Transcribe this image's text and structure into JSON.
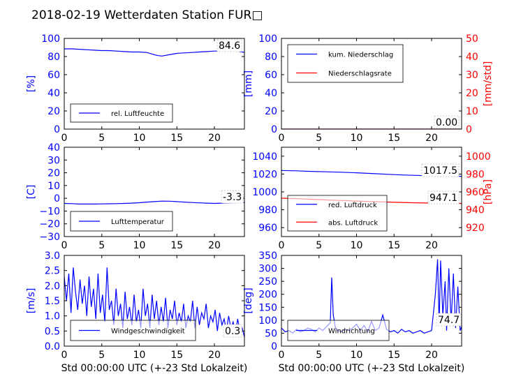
{
  "title": "2018-02-19 Wetterdaten Station FUR□",
  "colors": {
    "primary": "#0000ff",
    "secondary": "#ff0000",
    "tick_left": "#0000ff",
    "tick_right": "#ff0000"
  },
  "chart_data": [
    {
      "id": "humidity",
      "type": "line",
      "xlim": [
        0,
        24
      ],
      "ylim": [
        0,
        100
      ],
      "xticks": [
        "0",
        "5",
        "10",
        "15",
        "20"
      ],
      "yticks": [
        "0",
        "20",
        "40",
        "60",
        "80",
        "100"
      ],
      "ylabel": "[%]",
      "last_value": "84.6",
      "series": [
        {
          "name": "rel. Luftfeuchte",
          "color": "#0000ff",
          "x": [
            0,
            1,
            2,
            3,
            4,
            5,
            6,
            7,
            8,
            9,
            10,
            11,
            12,
            12.5,
            13,
            14,
            15,
            16,
            17,
            18,
            19,
            20,
            21,
            22,
            23,
            24
          ],
          "y": [
            88.5,
            88.5,
            88,
            87.5,
            87,
            86.5,
            86.5,
            86,
            85.5,
            85,
            85,
            84.5,
            82,
            81,
            80.5,
            82,
            83.5,
            84,
            84.5,
            85,
            85.5,
            86,
            86,
            86.5,
            86,
            84.6
          ]
        }
      ]
    },
    {
      "id": "precipitation",
      "type": "line",
      "xlim": [
        0,
        24
      ],
      "ylim": [
        0,
        100
      ],
      "ylim_right": [
        0,
        50
      ],
      "xticks": [
        "0",
        "5",
        "10",
        "15",
        "20"
      ],
      "yticks": [
        "0",
        "20",
        "40",
        "60",
        "80",
        "100"
      ],
      "yticks_right": [
        "0",
        "10",
        "20",
        "30",
        "40",
        "50"
      ],
      "ylabel": "[mm]",
      "ylabel_right": "[mm/std]",
      "last_value": "0.00",
      "series": [
        {
          "name": "kum. Niederschlag",
          "color": "#0000ff",
          "axis": "left",
          "x": [
            0,
            24
          ],
          "y": [
            0,
            0
          ]
        },
        {
          "name": "Niederschlagsrate",
          "color": "#ff0000",
          "axis": "right",
          "x": [
            0,
            24
          ],
          "y": [
            0,
            0
          ]
        }
      ]
    },
    {
      "id": "temperature",
      "type": "line",
      "xlim": [
        0,
        24
      ],
      "ylim": [
        -30,
        40
      ],
      "xticks": [
        "0",
        "5",
        "10",
        "15",
        "20"
      ],
      "yticks": [
        "−30",
        "−20",
        "−10",
        "0",
        "10",
        "20",
        "30",
        "40"
      ],
      "ylabel": "[C]",
      "last_value": "-3.3",
      "series": [
        {
          "name": "Lufttemperatur",
          "color": "#0000ff",
          "x": [
            0,
            1,
            2,
            3,
            4,
            5,
            6,
            7,
            8,
            9,
            10,
            11,
            12,
            13,
            14,
            15,
            16,
            17,
            18,
            19,
            20,
            21,
            22,
            23,
            24
          ],
          "y": [
            -4,
            -4.2,
            -4.5,
            -4.5,
            -4.5,
            -4.4,
            -4.3,
            -4.2,
            -4,
            -3.8,
            -3.5,
            -3,
            -2.6,
            -2.2,
            -2.3,
            -2.6,
            -3,
            -3.3,
            -3.6,
            -3.8,
            -4,
            -3.8,
            -3.6,
            -3.4,
            -3.3
          ]
        }
      ]
    },
    {
      "id": "pressure",
      "type": "line",
      "xlim": [
        0,
        24
      ],
      "ylim": [
        950,
        1050
      ],
      "ylim_right": [
        910,
        1010
      ],
      "xticks": [
        "0",
        "5",
        "10",
        "15",
        "20"
      ],
      "yticks": [
        "960",
        "980",
        "1000",
        "1020",
        "1040"
      ],
      "yticks_right": [
        "920",
        "940",
        "960",
        "980",
        "1000"
      ],
      "ylabel_right": "[hPa]",
      "last_value": "1017.5",
      "last_value_2": "947.1",
      "series": [
        {
          "name": "red. Luftdruck",
          "color": "#0000ff",
          "axis": "left",
          "x": [
            0,
            2,
            4,
            6,
            8,
            10,
            12,
            14,
            16,
            18,
            20,
            22,
            24
          ],
          "y": [
            1024,
            1023.6,
            1023,
            1022.5,
            1022,
            1021.4,
            1020.6,
            1019.8,
            1019,
            1018.5,
            1018,
            1017.8,
            1017.5
          ]
        },
        {
          "name": "abs. Luftdruck",
          "color": "#ff0000",
          "axis": "right",
          "x": [
            0,
            2,
            4,
            6,
            8,
            10,
            12,
            14,
            16,
            18,
            20,
            22,
            24
          ],
          "y": [
            953,
            952.4,
            951.7,
            951,
            950.4,
            949.8,
            949.2,
            948.7,
            948.2,
            947.8,
            947.5,
            947.3,
            947.1
          ]
        }
      ]
    },
    {
      "id": "wind_speed",
      "type": "line",
      "xlim": [
        0,
        24
      ],
      "ylim": [
        0,
        3
      ],
      "xticks": [
        "0",
        "5",
        "10",
        "15",
        "20"
      ],
      "yticks": [
        "0.0",
        "0.5",
        "1.0",
        "1.5",
        "2.0",
        "2.5",
        "3.0"
      ],
      "ylabel": "[m/s]",
      "xlabel": "Std 00:00:00 UTC (+-23 Std Lokalzeit)",
      "last_value": "0.3",
      "series": [
        {
          "name": "Windgeschwindigkeit",
          "color": "#0000ff",
          "x": [
            0,
            0.3,
            0.6,
            0.9,
            1.2,
            1.5,
            1.8,
            2.1,
            2.4,
            2.7,
            3,
            3.3,
            3.6,
            3.9,
            4.2,
            4.5,
            4.8,
            5.1,
            5.4,
            5.7,
            6,
            6.3,
            6.6,
            6.9,
            7.2,
            7.5,
            7.8,
            8.1,
            8.4,
            8.7,
            9,
            9.3,
            9.6,
            9.9,
            10.2,
            10.5,
            10.8,
            11.1,
            11.4,
            11.7,
            12,
            12.3,
            12.6,
            12.9,
            13.2,
            13.5,
            13.8,
            14.1,
            14.4,
            14.7,
            15,
            15.3,
            15.6,
            15.9,
            16.2,
            16.5,
            16.8,
            17.1,
            17.4,
            17.7,
            18,
            18.3,
            18.6,
            18.9,
            19.2,
            19.5,
            19.8,
            20.1,
            20.4,
            20.7,
            21,
            21.3,
            21.6,
            21.9,
            22.2,
            22.5,
            22.8,
            23.1,
            23.4,
            23.7,
            24
          ],
          "y": [
            2.3,
            1.5,
            2.4,
            1.1,
            2.6,
            1.8,
            1.2,
            2.2,
            1.4,
            2,
            1,
            2.3,
            1.3,
            1.9,
            0.9,
            2.4,
            1.1,
            1.7,
            0.8,
            2.6,
            1.2,
            1.5,
            0.7,
            1.9,
            1,
            1.4,
            0.6,
            1.8,
            0.9,
            1.3,
            0.7,
            1.7,
            0.8,
            1.2,
            0.6,
            1.9,
            1,
            1.4,
            0.6,
            1.7,
            0.9,
            1.5,
            0.7,
            1.3,
            0.8,
            1.6,
            0.6,
            1.2,
            0.9,
            1.5,
            0.7,
            1.1,
            0.8,
            1.4,
            0.6,
            1,
            0.8,
            1.5,
            0.6,
            1.3,
            0.7,
            1.1,
            0.9,
            1.4,
            0.6,
            1,
            0.8,
            1.2,
            0.5,
            1.1,
            0.7,
            0.9,
            0.5,
            1,
            0.6,
            0.8,
            0.4,
            0.9,
            0.5,
            0.6,
            0.3
          ]
        }
      ]
    },
    {
      "id": "wind_direction",
      "type": "line",
      "xlim": [
        0,
        24
      ],
      "ylim": [
        0,
        350
      ],
      "xticks": [
        "0",
        "5",
        "10",
        "15",
        "20"
      ],
      "yticks": [
        "0",
        "50",
        "100",
        "150",
        "200",
        "250",
        "300",
        "350"
      ],
      "ylabel": "[deg]",
      "xlabel": "Std 00:00:00 UTC (+-23 Std Lokalzeit)",
      "last_value": "74.7",
      "series": [
        {
          "name": "Windrichtung",
          "color": "#0000ff",
          "x": [
            0,
            0.5,
            1,
            1.5,
            2,
            2.5,
            3,
            3.5,
            4,
            4.5,
            5,
            5.5,
            6,
            6.5,
            6.7,
            6.9,
            7.2,
            7.5,
            8,
            8.5,
            9,
            9.5,
            10,
            10.5,
            11,
            11.5,
            12,
            12.5,
            13,
            13.5,
            14,
            14.5,
            15,
            15.5,
            16,
            16.5,
            17,
            17.5,
            18,
            18.5,
            19,
            19.5,
            20,
            20.5,
            20.8,
            21,
            21.2,
            21.5,
            21.8,
            22,
            22.3,
            22.6,
            22.9,
            23.2,
            23.5,
            23.8,
            24
          ],
          "y": [
            70,
            55,
            60,
            50,
            65,
            55,
            60,
            70,
            65,
            55,
            70,
            60,
            75,
            90,
            265,
            120,
            70,
            60,
            55,
            65,
            60,
            70,
            85,
            60,
            80,
            55,
            95,
            60,
            70,
            120,
            65,
            55,
            60,
            50,
            65,
            55,
            60,
            50,
            55,
            60,
            50,
            55,
            60,
            200,
            335,
            80,
            330,
            120,
            250,
            60,
            300,
            90,
            280,
            70,
            230,
            60,
            75
          ]
        }
      ]
    }
  ]
}
